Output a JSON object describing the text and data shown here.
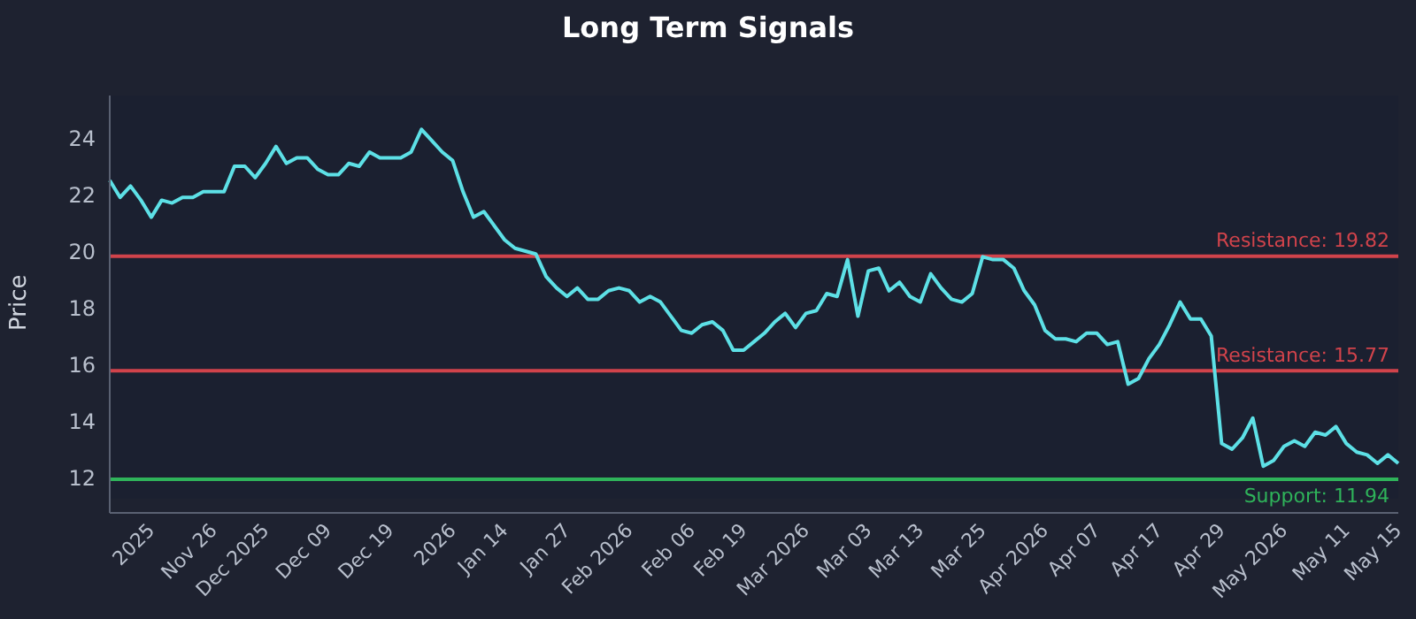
{
  "chart_data": {
    "type": "line",
    "title": "Long Term Signals",
    "ylabel": "Price",
    "categories": [
      null,
      null,
      null,
      null,
      "2025",
      null,
      null,
      null,
      null,
      null,
      "Nov 26",
      null,
      null,
      null,
      null,
      "Dec 2025",
      null,
      null,
      null,
      null,
      null,
      "Dec 09",
      null,
      null,
      null,
      null,
      null,
      "Dec 19",
      null,
      null,
      null,
      null,
      null,
      "2026",
      null,
      null,
      null,
      null,
      "Jan 14",
      null,
      null,
      null,
      null,
      null,
      "Jan 27",
      null,
      null,
      null,
      null,
      null,
      "Feb 2026",
      null,
      null,
      null,
      null,
      null,
      "Feb 06",
      null,
      null,
      null,
      null,
      "Feb 19",
      null,
      null,
      null,
      null,
      null,
      "Mar 2026",
      null,
      null,
      null,
      null,
      null,
      "Mar 03",
      null,
      null,
      null,
      null,
      "Mar 13",
      null,
      null,
      null,
      null,
      null,
      "Mar 25",
      null,
      null,
      null,
      null,
      null,
      "Apr 2026",
      null,
      null,
      null,
      null,
      "Apr 07",
      null,
      null,
      null,
      null,
      null,
      "Apr 17",
      null,
      null,
      null,
      null,
      null,
      "Apr 29",
      null,
      null,
      null,
      null,
      null,
      "May 2026",
      null,
      null,
      null,
      null,
      null,
      "May 11",
      null,
      null,
      null,
      null,
      "May 15"
    ],
    "series": [
      {
        "color": "#5de0e6",
        "values": [
          22.5,
          21.9,
          22.3,
          21.8,
          21.2,
          21.8,
          21.7,
          21.9,
          21.9,
          22.1,
          22.1,
          22.1,
          23.0,
          23.0,
          22.6,
          23.1,
          23.7,
          23.1,
          23.3,
          23.3,
          22.9,
          22.7,
          22.7,
          23.1,
          23.0,
          23.5,
          23.3,
          23.3,
          23.3,
          23.5,
          24.3,
          23.9,
          23.5,
          23.2,
          22.1,
          21.2,
          21.4,
          20.9,
          20.4,
          20.1,
          20.0,
          19.9,
          19.1,
          18.7,
          18.4,
          18.7,
          18.3,
          18.3,
          18.6,
          18.7,
          18.6,
          18.2,
          18.4,
          18.2,
          17.7,
          17.2,
          17.1,
          17.4,
          17.5,
          17.2,
          16.5,
          16.5,
          16.8,
          17.1,
          17.5,
          17.8,
          17.3,
          17.8,
          17.9,
          18.5,
          18.4,
          19.7,
          17.7,
          19.3,
          19.4,
          18.6,
          18.9,
          18.4,
          18.2,
          19.2,
          18.7,
          18.3,
          18.2,
          18.5,
          19.8,
          19.7,
          19.7,
          19.4,
          18.6,
          18.1,
          17.2,
          16.9,
          16.9,
          16.8,
          17.1,
          17.1,
          16.7,
          16.8,
          15.3,
          15.5,
          16.2,
          16.7,
          17.4,
          18.2,
          17.6,
          17.6,
          17.0,
          13.2,
          13.0,
          13.4,
          14.1,
          12.4,
          12.6,
          13.1,
          13.3,
          13.1,
          13.6,
          13.5,
          13.8,
          13.2,
          12.9,
          12.8,
          12.5,
          12.8,
          12.5
        ]
      }
    ],
    "ylim": [
      10.75,
      25.5
    ],
    "yticks": [
      12,
      14,
      16,
      18,
      20,
      22,
      24
    ],
    "grid": false,
    "marker": "none",
    "line_style": "solid",
    "ref_lines": [
      {
        "axis": "y",
        "value": 19.82,
        "label": "Resistance: 19.82",
        "color": "#d1434b"
      },
      {
        "axis": "y",
        "value": 15.77,
        "label": "Resistance: 15.77",
        "color": "#d1434b"
      },
      {
        "axis": "y",
        "value": 11.94,
        "label": "Support: 11.94",
        "color": "#2fb35a"
      }
    ]
  }
}
